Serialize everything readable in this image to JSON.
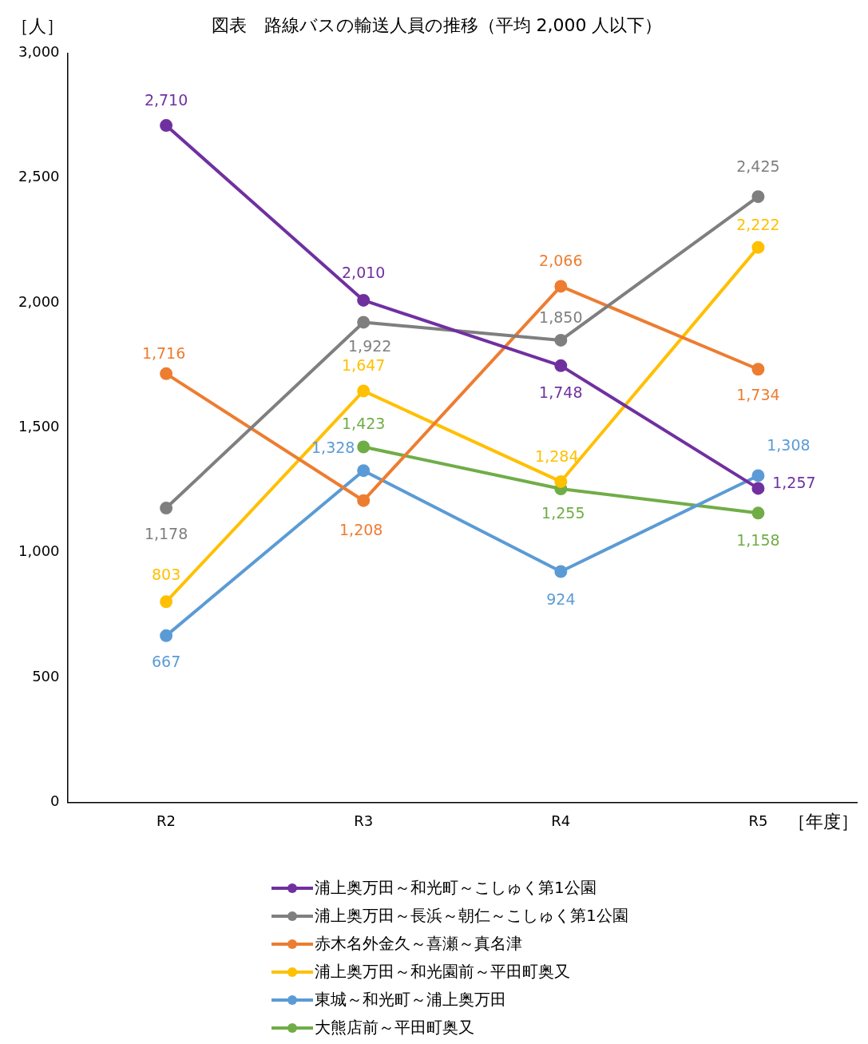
{
  "chart_data": {
    "type": "line",
    "title": "図表　路線バスの輸送人員の推移（平均 2,000 人以下）",
    "ylabel": "［人］",
    "xlabel": "［年度］",
    "categories": [
      "R2",
      "R3",
      "R4",
      "R5"
    ],
    "series": [
      {
        "name": "浦上奥万田～和光町～こしゅく第1公園",
        "color": "#7030a0",
        "values": [
          2710,
          2010,
          1748,
          1257
        ],
        "value_labels": [
          "2,710",
          "2,010",
          "1,748",
          "1,257"
        ]
      },
      {
        "name": "浦上奥万田～長浜～朝仁～こしゅく第1公園",
        "color": "#7f7f7f",
        "values": [
          1178,
          1922,
          1850,
          2425
        ],
        "value_labels": [
          "1,178",
          "1,922",
          "1,850",
          "2,425"
        ]
      },
      {
        "name": "赤木名外金久～喜瀬～真名津",
        "color": "#ed7d31",
        "values": [
          1716,
          1208,
          2066,
          1734
        ],
        "value_labels": [
          "1,716",
          "1,208",
          "2,066",
          "1,734"
        ]
      },
      {
        "name": "浦上奥万田～和光園前～平田町奥又",
        "color": "#ffc000",
        "values": [
          803,
          1647,
          1284,
          2222
        ],
        "value_labels": [
          "803",
          "1,647",
          "1,284",
          "2,222"
        ]
      },
      {
        "name": "東城～和光町～浦上奥万田",
        "color": "#5b9bd5",
        "values": [
          667,
          1328,
          924,
          1308
        ],
        "value_labels": [
          "667",
          "1,328",
          "924",
          "1,308"
        ]
      },
      {
        "name": "大熊店前～平田町奥又",
        "color": "#70ad47",
        "values": [
          null,
          1423,
          1255,
          1158
        ],
        "value_labels": [
          null,
          "1,423",
          "1,255",
          "1,158"
        ]
      }
    ],
    "ylim": [
      0,
      3000
    ],
    "yticks": [
      0,
      500,
      {
        "value": 1000,
        "label": "1,000"
      },
      {
        "value": 1500,
        "label": "1,500"
      },
      {
        "value": 2000,
        "label": "2,000"
      },
      {
        "value": 2500,
        "label": "2,500"
      },
      {
        "value": 3000,
        "label": "3,000"
      }
    ],
    "grid": false,
    "legend": "bottom",
    "marker": "circle",
    "line_style": "solid"
  }
}
